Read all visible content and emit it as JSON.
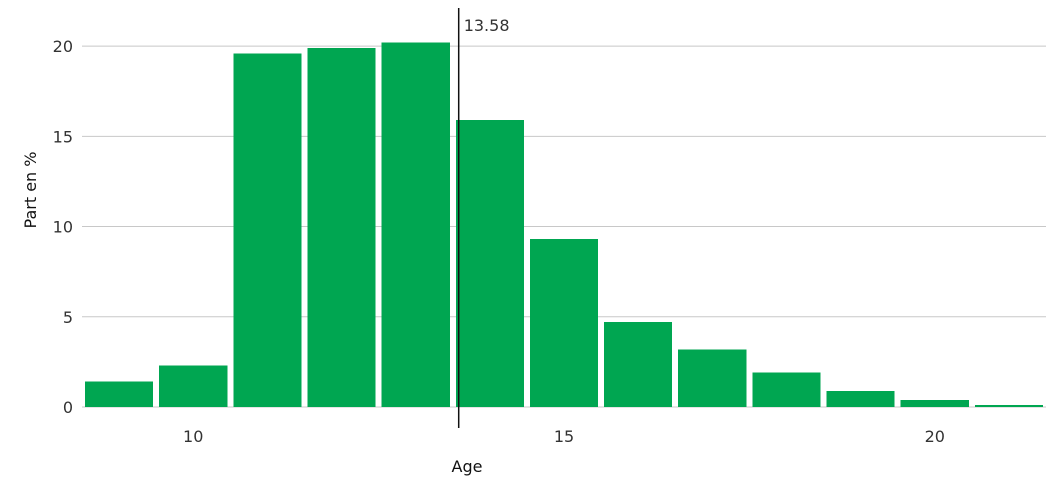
{
  "chart_data": {
    "type": "bar",
    "xlabel": "Age",
    "ylabel": "Part en %",
    "xlim": [
      8.5,
      21.5
    ],
    "ylim": [
      0,
      22
    ],
    "x_ticks": [
      10,
      15,
      20
    ],
    "y_ticks": [
      0,
      5,
      10,
      15,
      20
    ],
    "grid": true,
    "bar_color": "#00a651",
    "series": [
      {
        "x": [
          9,
          10,
          11,
          12,
          13,
          14,
          15,
          16,
          17,
          18,
          19,
          20,
          21
        ],
        "values": [
          1.4,
          2.3,
          19.6,
          19.9,
          20.2,
          15.9,
          9.3,
          4.7,
          3.2,
          1.9,
          0.9,
          0.4,
          0.1
        ]
      }
    ],
    "reference_line": {
      "x": 13.58,
      "label": "13.58"
    }
  }
}
